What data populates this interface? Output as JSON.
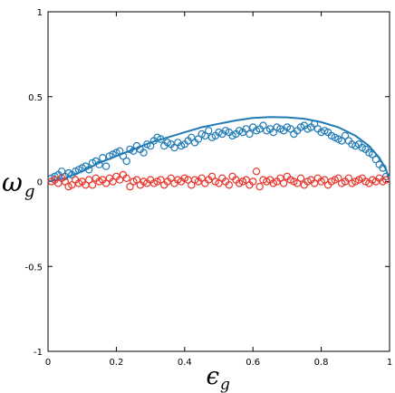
{
  "chart_data": {
    "type": "scatter",
    "xlabel": "ϵ",
    "xlabel_sub": "g",
    "ylabel": "ω",
    "ylabel_sub": "g",
    "xlim": [
      0,
      1
    ],
    "ylim": [
      -1,
      1
    ],
    "x_ticks": [
      "0",
      "0.2",
      "0.4",
      "0.6",
      "0.8",
      "1"
    ],
    "y_ticks": [
      "1",
      "0.5",
      "0",
      "-0.5",
      "-1"
    ],
    "grid": false,
    "legend": "none",
    "colors": {
      "blue": "#1f7ab5",
      "red": "#e8362c"
    },
    "series": [
      {
        "kind": "line",
        "color": "blue",
        "x": [
          0,
          0.05,
          0.1,
          0.15,
          0.2,
          0.25,
          0.3,
          0.35,
          0.4,
          0.45,
          0.5,
          0.55,
          0.6,
          0.65,
          0.7,
          0.75,
          0.8,
          0.85,
          0.9,
          0.94,
          0.97,
          0.99,
          1.0
        ],
        "y": [
          0.0,
          0.02,
          0.06,
          0.11,
          0.15,
          0.19,
          0.23,
          0.26,
          0.29,
          0.32,
          0.34,
          0.36,
          0.375,
          0.38,
          0.378,
          0.37,
          0.35,
          0.32,
          0.27,
          0.21,
          0.14,
          0.07,
          0.0
        ]
      },
      {
        "kind": "scatter",
        "color": "blue",
        "x": [
          0.01,
          0.02,
          0.03,
          0.04,
          0.05,
          0.06,
          0.07,
          0.08,
          0.09,
          0.1,
          0.11,
          0.12,
          0.13,
          0.14,
          0.15,
          0.16,
          0.17,
          0.18,
          0.19,
          0.2,
          0.21,
          0.22,
          0.23,
          0.24,
          0.25,
          0.26,
          0.27,
          0.28,
          0.29,
          0.3,
          0.31,
          0.32,
          0.33,
          0.34,
          0.35,
          0.36,
          0.37,
          0.38,
          0.39,
          0.4,
          0.41,
          0.42,
          0.43,
          0.44,
          0.45,
          0.46,
          0.47,
          0.48,
          0.49,
          0.5,
          0.51,
          0.52,
          0.53,
          0.54,
          0.55,
          0.56,
          0.57,
          0.58,
          0.59,
          0.6,
          0.61,
          0.62,
          0.63,
          0.64,
          0.65,
          0.66,
          0.67,
          0.68,
          0.69,
          0.7,
          0.71,
          0.72,
          0.73,
          0.74,
          0.75,
          0.76,
          0.77,
          0.78,
          0.79,
          0.8,
          0.81,
          0.82,
          0.83,
          0.84,
          0.85,
          0.86,
          0.87,
          0.88,
          0.89,
          0.9,
          0.91,
          0.92,
          0.93,
          0.94,
          0.95,
          0.96,
          0.97,
          0.98,
          0.99
        ],
        "y": [
          0.02,
          0.03,
          0.04,
          0.06,
          0.03,
          0.05,
          0.04,
          0.06,
          0.07,
          0.08,
          0.09,
          0.07,
          0.11,
          0.12,
          0.1,
          0.14,
          0.09,
          0.15,
          0.16,
          0.17,
          0.18,
          0.15,
          0.12,
          0.19,
          0.18,
          0.21,
          0.19,
          0.17,
          0.22,
          0.21,
          0.24,
          0.26,
          0.25,
          0.21,
          0.23,
          0.22,
          0.2,
          0.23,
          0.21,
          0.22,
          0.24,
          0.26,
          0.23,
          0.25,
          0.28,
          0.27,
          0.3,
          0.26,
          0.27,
          0.29,
          0.28,
          0.3,
          0.29,
          0.27,
          0.28,
          0.3,
          0.29,
          0.31,
          0.28,
          0.32,
          0.3,
          0.31,
          0.33,
          0.3,
          0.31,
          0.29,
          0.32,
          0.31,
          0.3,
          0.32,
          0.31,
          0.28,
          0.3,
          0.32,
          0.33,
          0.31,
          0.32,
          0.34,
          0.31,
          0.29,
          0.3,
          0.29,
          0.27,
          0.26,
          0.25,
          0.24,
          0.27,
          0.24,
          0.22,
          0.21,
          0.22,
          0.2,
          0.19,
          0.17,
          0.16,
          0.13,
          0.1,
          0.08,
          0.03
        ]
      },
      {
        "kind": "scatter",
        "color": "red",
        "x": [
          0.01,
          0.02,
          0.03,
          0.04,
          0.05,
          0.06,
          0.07,
          0.08,
          0.09,
          0.1,
          0.11,
          0.12,
          0.13,
          0.14,
          0.15,
          0.16,
          0.17,
          0.18,
          0.19,
          0.2,
          0.21,
          0.22,
          0.23,
          0.24,
          0.25,
          0.26,
          0.27,
          0.28,
          0.29,
          0.3,
          0.31,
          0.32,
          0.33,
          0.34,
          0.35,
          0.36,
          0.37,
          0.38,
          0.39,
          0.4,
          0.41,
          0.42,
          0.43,
          0.44,
          0.45,
          0.46,
          0.47,
          0.48,
          0.49,
          0.5,
          0.51,
          0.52,
          0.53,
          0.54,
          0.55,
          0.56,
          0.57,
          0.58,
          0.59,
          0.6,
          0.61,
          0.62,
          0.63,
          0.64,
          0.65,
          0.66,
          0.67,
          0.68,
          0.69,
          0.7,
          0.71,
          0.72,
          0.73,
          0.74,
          0.75,
          0.76,
          0.77,
          0.78,
          0.79,
          0.8,
          0.81,
          0.82,
          0.83,
          0.84,
          0.85,
          0.86,
          0.87,
          0.88,
          0.89,
          0.9,
          0.91,
          0.92,
          0.93,
          0.94,
          0.95,
          0.96,
          0.97,
          0.98,
          0.99
        ],
        "y": [
          0.0,
          0.01,
          -0.01,
          0.02,
          0.0,
          -0.03,
          -0.02,
          0.01,
          -0.01,
          0.0,
          -0.02,
          0.01,
          -0.02,
          0.02,
          0.0,
          0.01,
          -0.01,
          0.02,
          0.0,
          0.03,
          0.01,
          0.04,
          0.02,
          -0.03,
          0.0,
          0.01,
          -0.02,
          0.0,
          -0.01,
          0.01,
          -0.01,
          0.0,
          0.01,
          -0.02,
          0.0,
          0.02,
          -0.01,
          0.01,
          0.0,
          0.02,
          0.01,
          -0.02,
          0.01,
          0.0,
          0.02,
          -0.01,
          0.01,
          0.03,
          0.0,
          -0.01,
          0.02,
          0.0,
          -0.02,
          0.03,
          0.01,
          -0.01,
          0.0,
          0.01,
          -0.02,
          0.0,
          0.06,
          -0.03,
          0.01,
          0.0,
          0.01,
          -0.01,
          0.0,
          0.02,
          -0.01,
          0.03,
          0.01,
          0.0,
          -0.01,
          0.02,
          -0.02,
          0.0,
          0.01,
          -0.01,
          0.02,
          0.0,
          0.01,
          -0.02,
          0.0,
          0.01,
          0.02,
          -0.01,
          0.0,
          0.02,
          -0.01,
          0.0,
          0.01,
          0.02,
          0.0,
          -0.01,
          0.01,
          0.0,
          0.02,
          0.0,
          0.01
        ]
      }
    ]
  }
}
